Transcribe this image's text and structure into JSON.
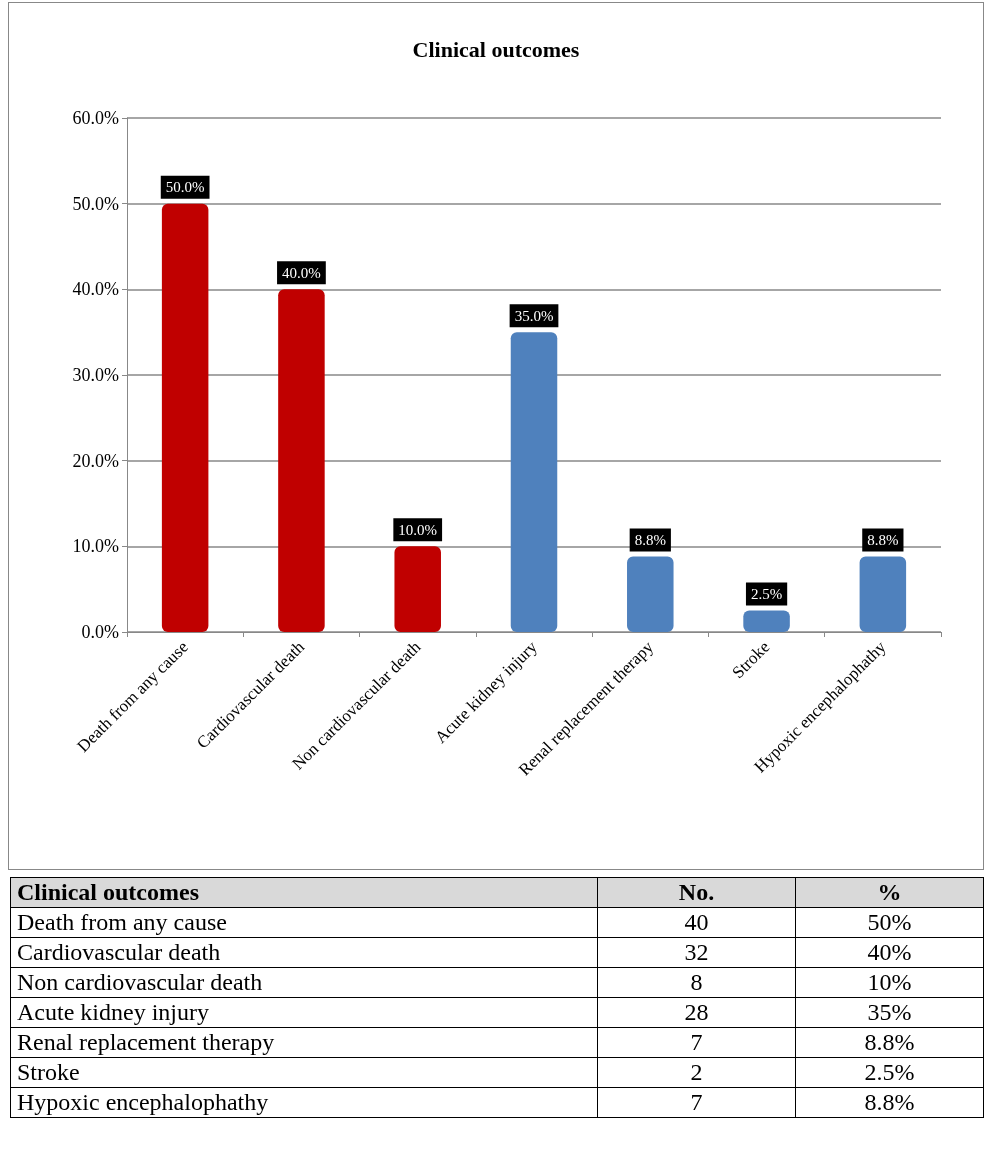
{
  "chart_data": [
    {
      "type": "bar",
      "title": "Clinical outcomes",
      "categories": [
        "Death from any cause",
        "Cardiovascular death",
        "Non cardiovascular death",
        "Acute kidney injury",
        "Renal replacement therapy",
        "Stroke",
        "Hypoxic encephalophathy"
      ],
      "values": [
        50,
        40,
        10,
        35,
        8.8,
        2.5,
        8.8
      ],
      "colors": [
        "#c00000",
        "#c00000",
        "#c00000",
        "#4f81bd",
        "#4f81bd",
        "#4f81bd",
        "#4f81bd"
      ],
      "value_labels": [
        "50.0%",
        "40.0%",
        "10.0%",
        "35.0%",
        "8.8%",
        "2.5%",
        "8.8%"
      ],
      "ylim": [
        0,
        60
      ],
      "yticks": [
        {
          "value": 0,
          "label": "0.0%"
        },
        {
          "value": 10,
          "label": "10.0%"
        },
        {
          "value": 20,
          "label": "20.0%"
        },
        {
          "value": 30,
          "label": "30.0%"
        },
        {
          "value": 40,
          "label": "40.0%"
        },
        {
          "value": 50,
          "label": "50.0%"
        },
        {
          "value": 60,
          "label": "60.0%"
        }
      ],
      "grid": "y"
    },
    {
      "type": "other",
      "title": "Clinical outcomes",
      "categories": [
        "Death from any cause",
        "Cardiovascular death",
        "Non cardiovascular death",
        "Acute kidney injury",
        "Renal replacement therapy",
        "Stroke",
        "Hypoxic encephalophathy"
      ],
      "data_labels": true,
      "series": [
        {
          "name": "No.",
          "values": [
            40,
            32,
            8,
            28,
            7,
            2,
            7
          ]
        },
        {
          "name": "%",
          "values": [
            50,
            40,
            10,
            35,
            8.8,
            2.5,
            8.8
          ],
          "value_labels": [
            "50%",
            "40%",
            "10%",
            "35%",
            "8.8%",
            "2.5%",
            "8.8%"
          ]
        }
      ]
    }
  ]
}
